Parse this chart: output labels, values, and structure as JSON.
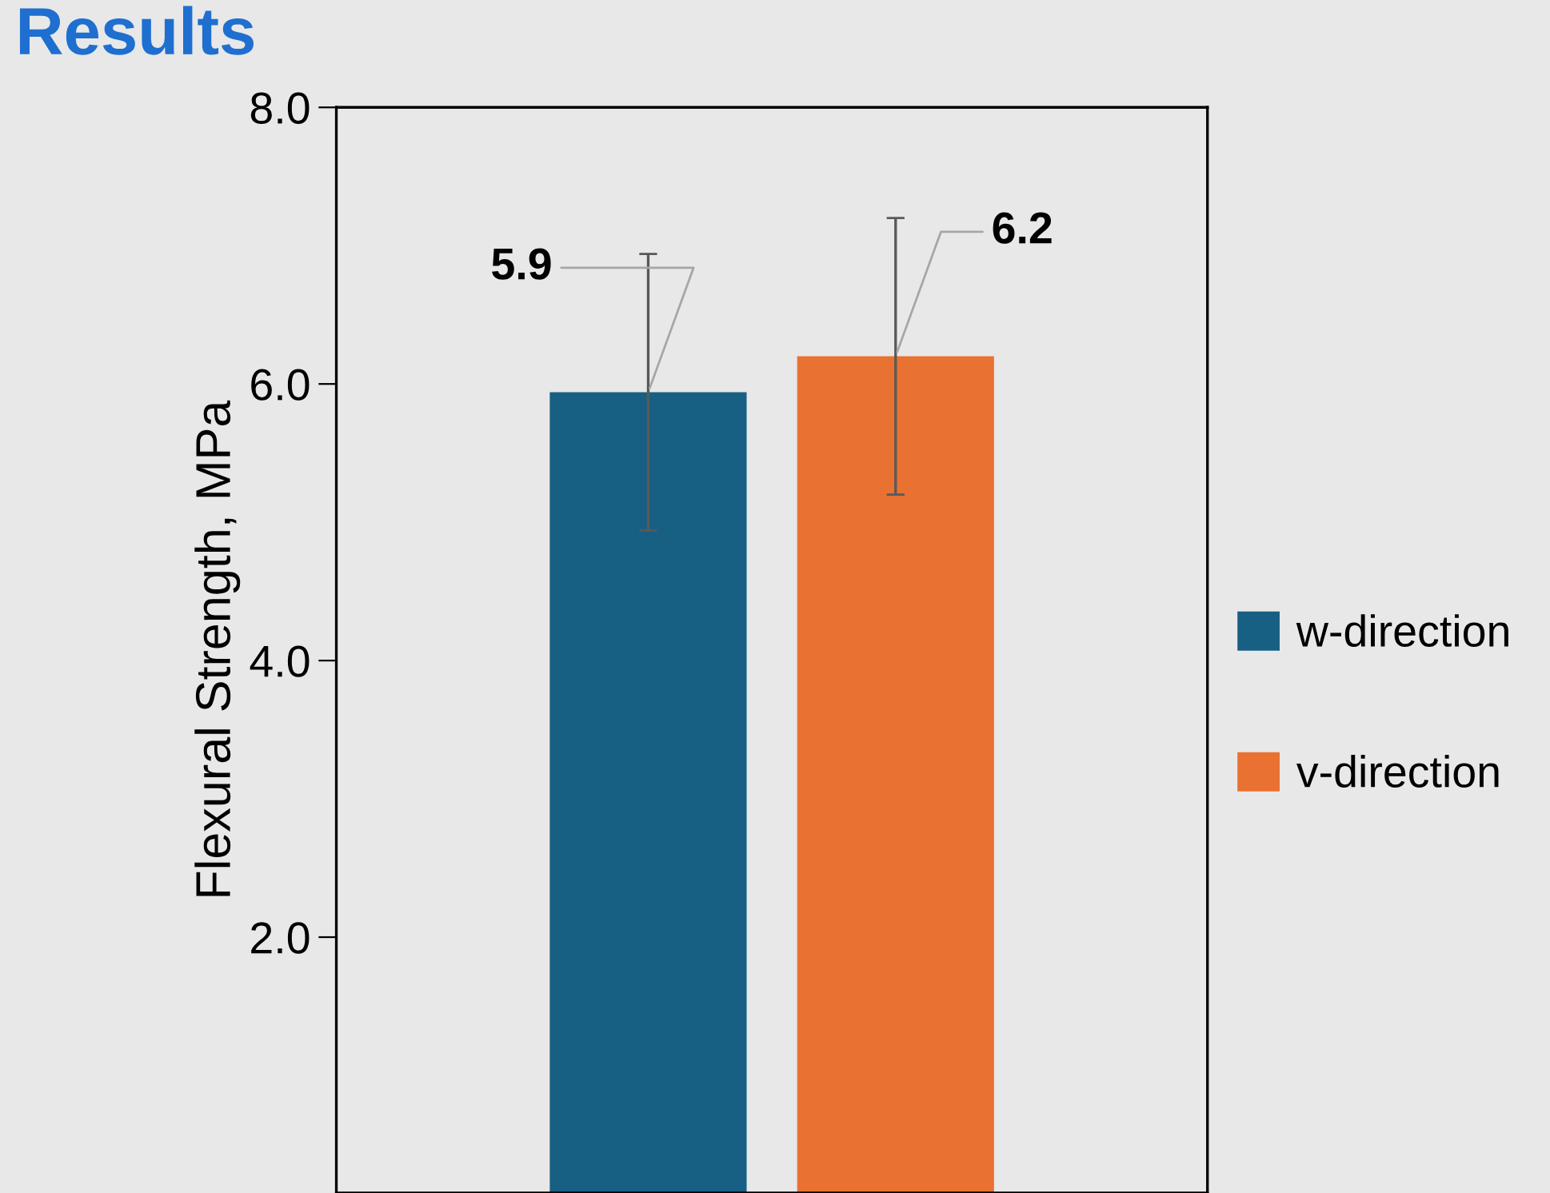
{
  "chart_data": {
    "type": "bar",
    "title": "Results",
    "ylabel": "Flexural Strength, MPa",
    "categories": [
      null
    ],
    "series": [
      {
        "name": "w-direction",
        "color": "#176084",
        "values": [
          5.94
        ],
        "errors": [
          1.0
        ],
        "value_labels": [
          "5.9"
        ]
      },
      {
        "name": "v-direction",
        "color": "#e97132",
        "values": [
          6.2
        ],
        "errors": [
          1.0
        ],
        "value_labels": [
          "6.2"
        ]
      }
    ],
    "ylim": [
      0.15,
      8.0
    ],
    "yticks": [
      {
        "value": 2,
        "label": "2.0"
      },
      {
        "value": 4,
        "label": "4.0"
      },
      {
        "value": 6,
        "label": "6.0"
      },
      {
        "value": 8,
        "label": "8.0"
      }
    ],
    "grid": false,
    "legend": "right"
  }
}
